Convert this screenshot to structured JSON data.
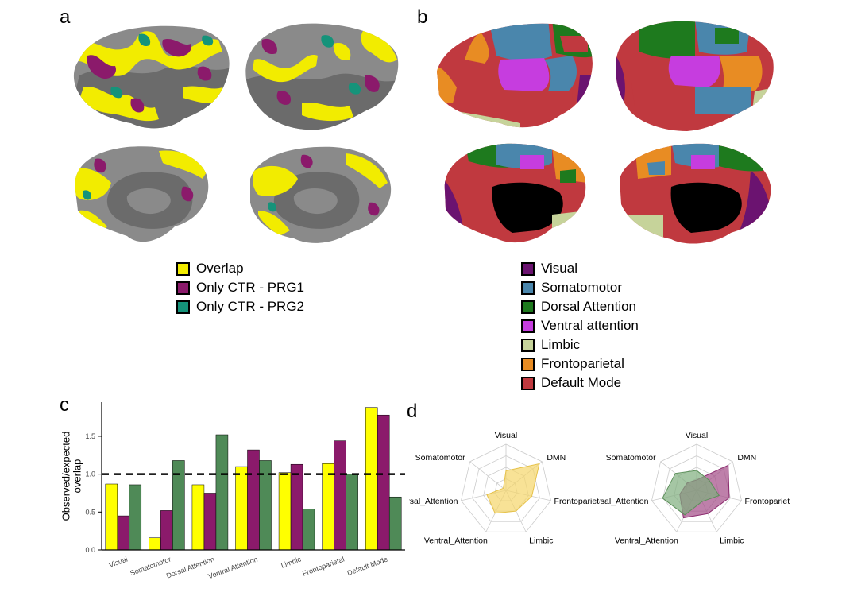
{
  "panels": {
    "a": "a",
    "b": "b",
    "c": "c",
    "d": "d"
  },
  "legend_a": [
    {
      "label": "Overlap",
      "color": "#f2ec00"
    },
    {
      "label": "Only CTR - PRG1",
      "color": "#8b1a6b"
    },
    {
      "label": "Only CTR - PRG2",
      "color": "#15937a"
    }
  ],
  "legend_b": [
    {
      "label": "Visual",
      "color": "#6b1370"
    },
    {
      "label": "Somatomotor",
      "color": "#4a86ac"
    },
    {
      "label": "Dorsal Attention",
      "color": "#1e7a1e"
    },
    {
      "label": "Ventral attention",
      "color": "#c63ddf"
    },
    {
      "label": "Limbic",
      "color": "#c6d39a"
    },
    {
      "label": "Frontoparietal",
      "color": "#e88c23"
    },
    {
      "label": "Default Mode",
      "color": "#c0393f"
    }
  ],
  "colors": {
    "cortex_dark": "#5c5c5c",
    "cortex_light": "#8a8a8a",
    "medial_wall": "#000000",
    "series_yellow": "#ffff00",
    "series_purple": "#8b1a6b",
    "series_green": "#4f8a57",
    "radar_yellow": "#f5d66a",
    "radar_purple": "#a34a86",
    "radar_green": "#7fae7d"
  },
  "chart_data": [
    {
      "type": "bar",
      "ylabel": "Observed/expected overlap",
      "ylim": [
        0,
        1.95
      ],
      "yticks": [
        "0.0",
        "0.5",
        "1.0",
        "1.5"
      ],
      "reference_line": 1.0,
      "categories": [
        "Visual",
        "Somatomotor",
        "Dorsal Attention",
        "Ventral Attention",
        "Limbic",
        "Frontoparietal",
        "Default Mode"
      ],
      "series": [
        {
          "values": [
            0.87,
            0.16,
            0.86,
            1.1,
            1.02,
            1.14,
            1.88
          ]
        },
        {
          "values": [
            0.45,
            0.52,
            0.75,
            1.32,
            1.13,
            1.44,
            1.78
          ]
        },
        {
          "values": [
            0.86,
            1.18,
            1.52,
            1.18,
            0.54,
            1.0,
            0.7
          ]
        }
      ]
    },
    {
      "type": "radar",
      "axes": [
        "Visual",
        "DMN",
        "Frontoparietal",
        "Limbic",
        "Ventral_Attention",
        "Dorsal_Attention",
        "Somatomotor"
      ],
      "max": 2,
      "series": [
        {
          "values": [
            0.85,
            1.85,
            1.15,
            1.0,
            1.1,
            0.85,
            0.15
          ]
        }
      ]
    },
    {
      "type": "radar",
      "axes": [
        "Visual",
        "DMN",
        "Frontoparietal",
        "Limbic",
        "Ventral_Attention",
        "Dorsal_Attention",
        "Somatomotor"
      ],
      "max": 2,
      "series": [
        {
          "values": [
            0.45,
            1.75,
            1.45,
            1.12,
            1.32,
            0.75,
            0.52
          ]
        },
        {
          "values": [
            0.86,
            0.7,
            1.0,
            0.54,
            1.18,
            1.52,
            1.18
          ]
        }
      ]
    }
  ]
}
